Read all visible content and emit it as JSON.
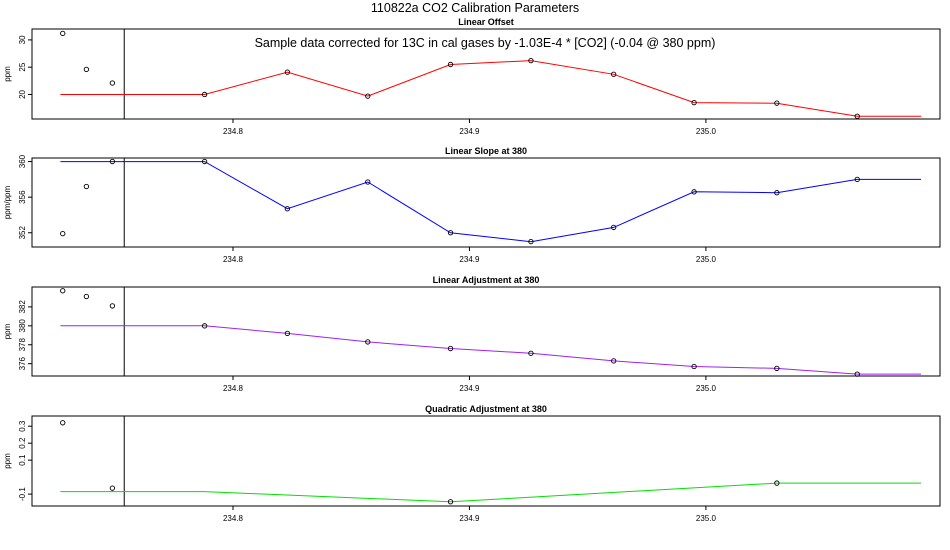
{
  "title": "110822a   CO2 Calibration Parameters",
  "annotation": "Sample data corrected for 13C in cal gases by -1.03E-4 * [CO2] (-0.04 @ 380 ppm)",
  "chart_data": [
    {
      "type": "line",
      "title": "Linear Offset",
      "ylabel": "ppm",
      "line_color": "#ff0000",
      "xlim": [
        234.715,
        235.099
      ],
      "ylim": [
        15.5,
        32.0
      ],
      "xticks": [
        234.8,
        234.9,
        235.0
      ],
      "xtick_labels": [
        "234.8",
        "234.9",
        "235.0"
      ],
      "yticks": [
        20,
        25,
        30
      ],
      "ytick_labels": [
        "20",
        "25",
        "30"
      ],
      "outliers": [
        {
          "x": 234.728,
          "y": 31.2
        },
        {
          "x": 234.738,
          "y": 24.6
        },
        {
          "x": 234.749,
          "y": 22.1
        }
      ],
      "divider_x": 234.754,
      "line": [
        {
          "x": 234.727,
          "y": 20.0
        },
        {
          "x": 234.788,
          "y": 20.0
        },
        {
          "x": 234.823,
          "y": 24.1
        },
        {
          "x": 234.857,
          "y": 19.7
        },
        {
          "x": 234.892,
          "y": 25.5
        },
        {
          "x": 234.926,
          "y": 26.2
        },
        {
          "x": 234.961,
          "y": 23.7
        },
        {
          "x": 234.995,
          "y": 18.5
        },
        {
          "x": 235.03,
          "y": 18.4
        },
        {
          "x": 235.064,
          "y": 16.0
        },
        {
          "x": 235.091,
          "y": 16.0
        }
      ],
      "points": [
        {
          "x": 234.788,
          "y": 20.0
        },
        {
          "x": 234.823,
          "y": 24.1
        },
        {
          "x": 234.857,
          "y": 19.7
        },
        {
          "x": 234.892,
          "y": 25.5
        },
        {
          "x": 234.926,
          "y": 26.2
        },
        {
          "x": 234.961,
          "y": 23.7
        },
        {
          "x": 234.995,
          "y": 18.5
        },
        {
          "x": 235.03,
          "y": 18.4
        },
        {
          "x": 235.064,
          "y": 16.0
        }
      ]
    },
    {
      "type": "line",
      "title": "Linear Slope at 380",
      "ylabel": "ppm/ppm",
      "line_color": "#0000ff",
      "xlim": [
        234.715,
        235.099
      ],
      "ylim": [
        350.4,
        360.4
      ],
      "xticks": [
        234.8,
        234.9,
        235.0
      ],
      "xtick_labels": [
        "234.8",
        "234.9",
        "235.0"
      ],
      "yticks": [
        352,
        356,
        360
      ],
      "ytick_labels": [
        "352",
        "356",
        "360"
      ],
      "outliers": [
        {
          "x": 234.728,
          "y": 351.9
        },
        {
          "x": 234.738,
          "y": 357.2
        },
        {
          "x": 234.749,
          "y": 360.0
        }
      ],
      "divider_x": 234.754,
      "line": [
        {
          "x": 234.727,
          "y": 360.0
        },
        {
          "x": 234.788,
          "y": 360.0
        },
        {
          "x": 234.823,
          "y": 354.7
        },
        {
          "x": 234.857,
          "y": 357.7
        },
        {
          "x": 234.892,
          "y": 352.0
        },
        {
          "x": 234.926,
          "y": 351.0
        },
        {
          "x": 234.961,
          "y": 352.6
        },
        {
          "x": 234.995,
          "y": 356.6
        },
        {
          "x": 235.03,
          "y": 356.5
        },
        {
          "x": 235.064,
          "y": 358.0
        },
        {
          "x": 235.091,
          "y": 358.0
        }
      ],
      "points": [
        {
          "x": 234.788,
          "y": 360.0
        },
        {
          "x": 234.823,
          "y": 354.7
        },
        {
          "x": 234.857,
          "y": 357.7
        },
        {
          "x": 234.892,
          "y": 352.0
        },
        {
          "x": 234.926,
          "y": 351.0
        },
        {
          "x": 234.961,
          "y": 352.6
        },
        {
          "x": 234.995,
          "y": 356.6
        },
        {
          "x": 235.03,
          "y": 356.5
        },
        {
          "x": 235.064,
          "y": 358.0
        }
      ]
    },
    {
      "type": "line",
      "title": "Linear Adjustment at 380",
      "ylabel": "ppm",
      "line_color": "#a020f0",
      "xlim": [
        234.715,
        235.099
      ],
      "ylim": [
        374.7,
        384.1
      ],
      "xticks": [
        234.8,
        234.9,
        235.0
      ],
      "xtick_labels": [
        "234.8",
        "234.9",
        "235.0"
      ],
      "yticks": [
        376,
        378,
        380,
        382
      ],
      "ytick_labels": [
        "376",
        "378",
        "380",
        "382"
      ],
      "outliers": [
        {
          "x": 234.728,
          "y": 383.7
        },
        {
          "x": 234.738,
          "y": 383.1
        },
        {
          "x": 234.749,
          "y": 382.1
        }
      ],
      "divider_x": 234.754,
      "line": [
        {
          "x": 234.727,
          "y": 380.0
        },
        {
          "x": 234.788,
          "y": 380.0
        },
        {
          "x": 234.823,
          "y": 379.2
        },
        {
          "x": 234.857,
          "y": 378.3
        },
        {
          "x": 234.892,
          "y": 377.6
        },
        {
          "x": 234.926,
          "y": 377.1
        },
        {
          "x": 234.961,
          "y": 376.3
        },
        {
          "x": 234.995,
          "y": 375.7
        },
        {
          "x": 235.03,
          "y": 375.5
        },
        {
          "x": 235.064,
          "y": 374.9
        },
        {
          "x": 235.091,
          "y": 374.9
        }
      ],
      "points": [
        {
          "x": 234.788,
          "y": 380.0
        },
        {
          "x": 234.823,
          "y": 379.2
        },
        {
          "x": 234.857,
          "y": 378.3
        },
        {
          "x": 234.892,
          "y": 377.6
        },
        {
          "x": 234.926,
          "y": 377.1
        },
        {
          "x": 234.961,
          "y": 376.3
        },
        {
          "x": 234.995,
          "y": 375.7
        },
        {
          "x": 235.03,
          "y": 375.5
        },
        {
          "x": 235.064,
          "y": 374.9
        }
      ]
    },
    {
      "type": "line",
      "title": "Quadratic Adjustment at 380",
      "ylabel": "ppm",
      "line_color": "#00e000",
      "xlim": [
        234.715,
        235.099
      ],
      "ylim": [
        -0.17,
        0.36
      ],
      "xticks": [
        234.8,
        234.9,
        235.0
      ],
      "xtick_labels": [
        "234.8",
        "234.9",
        "235.0"
      ],
      "yticks": [
        -0.1,
        0.1,
        0.2,
        0.3
      ],
      "ytick_labels": [
        "-0.1",
        "0.1",
        "0.2",
        "0.3"
      ],
      "outliers": [
        {
          "x": 234.728,
          "y": 0.32
        },
        {
          "x": 234.749,
          "y": -0.065
        }
      ],
      "divider_x": 234.754,
      "line": [
        {
          "x": 234.727,
          "y": -0.085
        },
        {
          "x": 234.788,
          "y": -0.085
        },
        {
          "x": 234.892,
          "y": -0.145
        },
        {
          "x": 235.03,
          "y": -0.035
        },
        {
          "x": 235.091,
          "y": -0.035
        }
      ],
      "points": [
        {
          "x": 234.892,
          "y": -0.145
        },
        {
          "x": 235.03,
          "y": -0.035
        }
      ]
    }
  ]
}
